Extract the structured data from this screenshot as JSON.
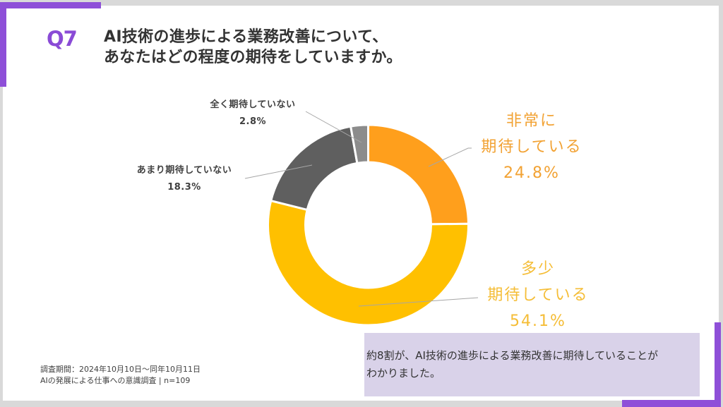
{
  "header": {
    "question_number": "Q7",
    "title_lines": [
      "AI技術の進歩による業務改善について、",
      "あなたはどの程度の期待をしていますか。"
    ]
  },
  "chart_data": {
    "type": "pie",
    "variant": "donut",
    "start": "top",
    "direction": "clockwise",
    "categories": [
      "非常に期待している",
      "多少期待している",
      "あまり期待していない",
      "全く期待していない"
    ],
    "values": [
      24.8,
      54.1,
      18.3,
      2.8
    ],
    "unit": "%",
    "colors": [
      "#ff9f1c",
      "#ffc000",
      "#5f5f5f",
      "#8c8c8c"
    ],
    "labels": [
      {
        "lines": [
          "非常に",
          "期待している"
        ],
        "value": "24.8%"
      },
      {
        "lines": [
          "多少",
          "期待している"
        ],
        "value": "54.1%"
      },
      {
        "lines": [
          "あまり期待していない"
        ],
        "value": "18.3%"
      },
      {
        "lines": [
          "全く期待していない"
        ],
        "value": "2.8%"
      }
    ]
  },
  "summary": {
    "lines": [
      "約8割が、AI技術の進歩による業務改善に期待していることが",
      "わかりました。"
    ]
  },
  "footnote": {
    "lines": [
      "調査期間：2024年10月10日～同年10月11日",
      "AIの発展による仕事への意識調査 | n=109"
    ]
  },
  "colors": {
    "accent": "#8e4fd8",
    "summary_bg": "#d9d2e9",
    "label_orange": "#f2a233",
    "label_yellow": "#f5bd36"
  }
}
